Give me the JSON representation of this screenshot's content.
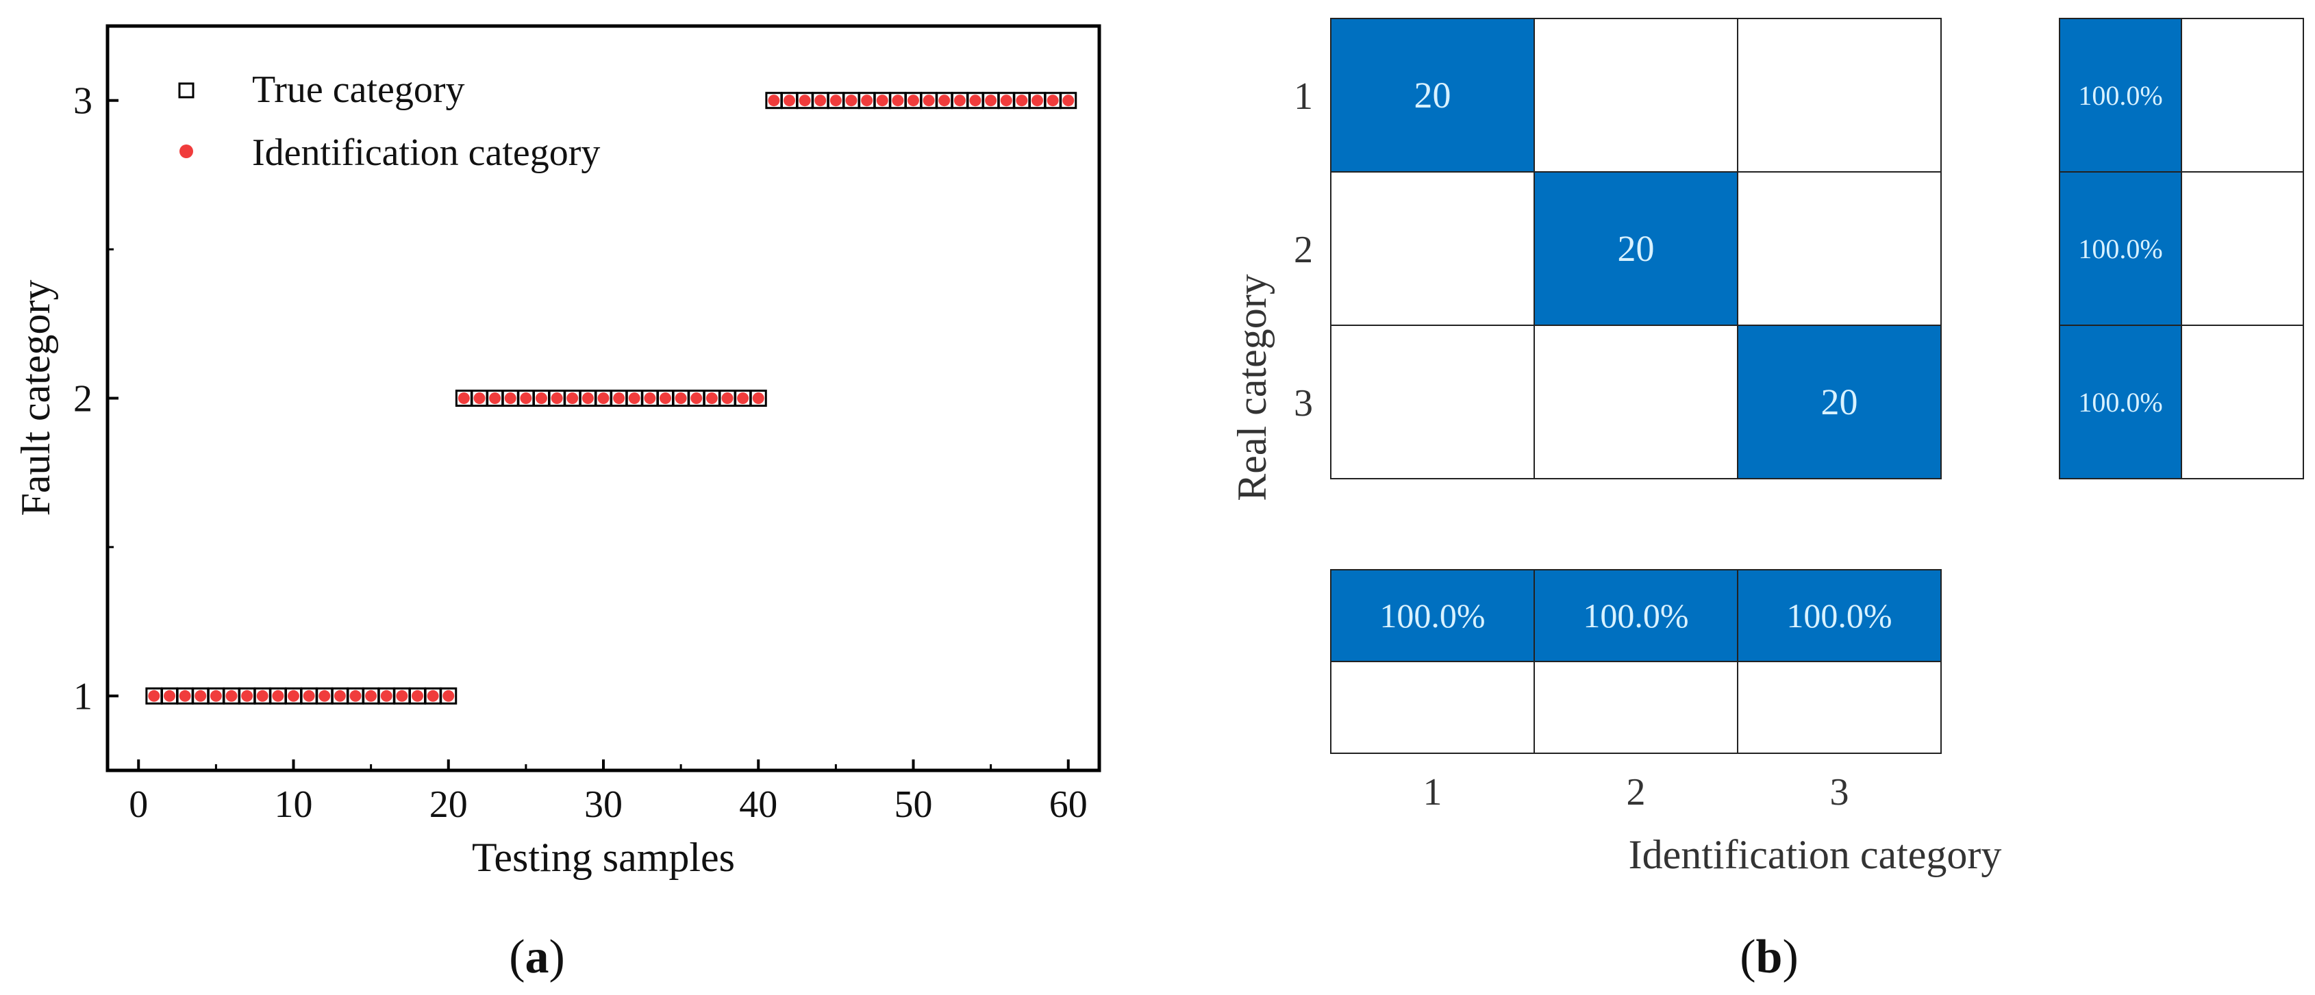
{
  "chart_data": [
    {
      "panel": "a",
      "type": "scatter",
      "xlabel": "Testing samples",
      "ylabel": "Fault category",
      "xlim": [
        -2,
        62
      ],
      "ylim": [
        0.75,
        3.25
      ],
      "xticks": [
        0,
        10,
        20,
        30,
        40,
        50,
        60
      ],
      "yticks": [
        1,
        2,
        3
      ],
      "legend_position": "top-left",
      "series": [
        {
          "name": "True category",
          "marker": "open-square",
          "color": "#000000",
          "x": [
            1,
            2,
            3,
            4,
            5,
            6,
            7,
            8,
            9,
            10,
            11,
            12,
            13,
            14,
            15,
            16,
            17,
            18,
            19,
            20,
            21,
            22,
            23,
            24,
            25,
            26,
            27,
            28,
            29,
            30,
            31,
            32,
            33,
            34,
            35,
            36,
            37,
            38,
            39,
            40,
            41,
            42,
            43,
            44,
            45,
            46,
            47,
            48,
            49,
            50,
            51,
            52,
            53,
            54,
            55,
            56,
            57,
            58,
            59,
            60
          ],
          "y": [
            1,
            1,
            1,
            1,
            1,
            1,
            1,
            1,
            1,
            1,
            1,
            1,
            1,
            1,
            1,
            1,
            1,
            1,
            1,
            1,
            2,
            2,
            2,
            2,
            2,
            2,
            2,
            2,
            2,
            2,
            2,
            2,
            2,
            2,
            2,
            2,
            2,
            2,
            2,
            2,
            3,
            3,
            3,
            3,
            3,
            3,
            3,
            3,
            3,
            3,
            3,
            3,
            3,
            3,
            3,
            3,
            3,
            3,
            3,
            3
          ]
        },
        {
          "name": "Identification category",
          "marker": "filled-circle",
          "color": "#f03c3c",
          "x": [
            1,
            2,
            3,
            4,
            5,
            6,
            7,
            8,
            9,
            10,
            11,
            12,
            13,
            14,
            15,
            16,
            17,
            18,
            19,
            20,
            21,
            22,
            23,
            24,
            25,
            26,
            27,
            28,
            29,
            30,
            31,
            32,
            33,
            34,
            35,
            36,
            37,
            38,
            39,
            40,
            41,
            42,
            43,
            44,
            45,
            46,
            47,
            48,
            49,
            50,
            51,
            52,
            53,
            54,
            55,
            56,
            57,
            58,
            59,
            60
          ],
          "y": [
            1,
            1,
            1,
            1,
            1,
            1,
            1,
            1,
            1,
            1,
            1,
            1,
            1,
            1,
            1,
            1,
            1,
            1,
            1,
            1,
            2,
            2,
            2,
            2,
            2,
            2,
            2,
            2,
            2,
            2,
            2,
            2,
            2,
            2,
            2,
            2,
            2,
            2,
            2,
            2,
            3,
            3,
            3,
            3,
            3,
            3,
            3,
            3,
            3,
            3,
            3,
            3,
            3,
            3,
            3,
            3,
            3,
            3,
            3,
            3
          ]
        }
      ]
    },
    {
      "panel": "b",
      "type": "heatmap",
      "xlabel": "Identification category",
      "ylabel": "Real category",
      "categories": [
        "1",
        "2",
        "3"
      ],
      "matrix": [
        [
          20,
          0,
          0
        ],
        [
          0,
          20,
          0
        ],
        [
          0,
          0,
          20
        ]
      ],
      "matrix_labels": [
        [
          "20",
          "",
          ""
        ],
        [
          "",
          "20",
          ""
        ],
        [
          "",
          "",
          "20"
        ]
      ],
      "row_summary": [
        [
          "100.0%",
          ""
        ],
        [
          "100.0%",
          ""
        ],
        [
          "100.0%",
          ""
        ]
      ],
      "column_summary": [
        [
          "100.0%",
          "100.0%",
          "100.0%"
        ],
        [
          "",
          "",
          ""
        ]
      ],
      "fill_color": "#0070c0",
      "text_color": "#d9f2ff"
    }
  ],
  "captions": {
    "a_letter": "a",
    "b_letter": "b",
    "open": "(",
    "close": ")"
  }
}
